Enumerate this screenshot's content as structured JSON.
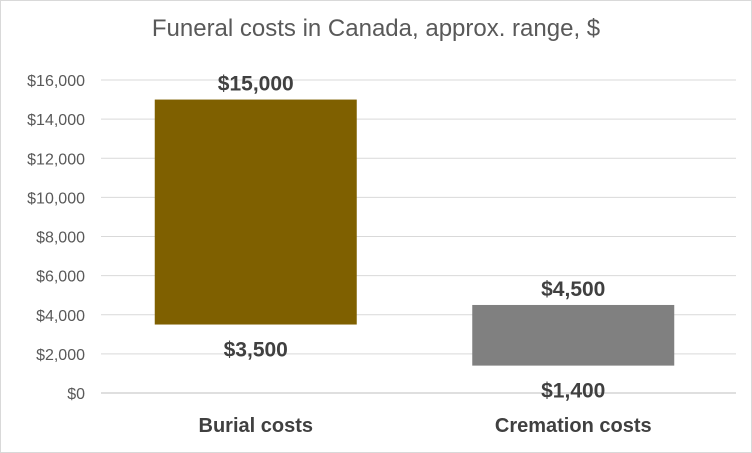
{
  "chart_data": {
    "type": "bar",
    "title": "Funeral costs in Canada, approx. range, $",
    "categories": [
      "Burial costs",
      "Cremation costs"
    ],
    "series": [
      {
        "low": [
          3500,
          1400
        ],
        "high": [
          15000,
          4500
        ]
      }
    ],
    "low_labels": [
      "$3,500",
      "$1,400"
    ],
    "high_labels": [
      "$15,000",
      "$4,500"
    ],
    "ylim": [
      0,
      16000
    ],
    "yticks": [
      0,
      2000,
      4000,
      6000,
      8000,
      10000,
      12000,
      14000,
      16000
    ],
    "ytick_labels": [
      "$0",
      "$2,000",
      "$4,000",
      "$6,000",
      "$8,000",
      "$10,000",
      "$12,000",
      "$14,000",
      "$16,000"
    ],
    "grid": true,
    "colors": [
      "#7f6000",
      "#808080"
    ]
  }
}
